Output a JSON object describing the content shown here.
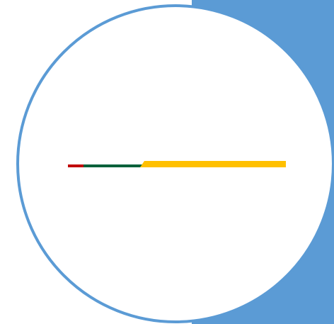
{
  "colors": {
    "background": "#ffffff",
    "accent_blue": "#5b9bd5",
    "circle_fill": "#ffffff",
    "bar_red": "#c00000",
    "bar_green": "#00603a",
    "bar_yellow": "#ffc000"
  },
  "progress_bar": {
    "segments": [
      {
        "name": "red",
        "fraction": 0.07
      },
      {
        "name": "green",
        "fraction": 0.27
      },
      {
        "name": "yellow",
        "fraction": 0.66
      }
    ]
  }
}
